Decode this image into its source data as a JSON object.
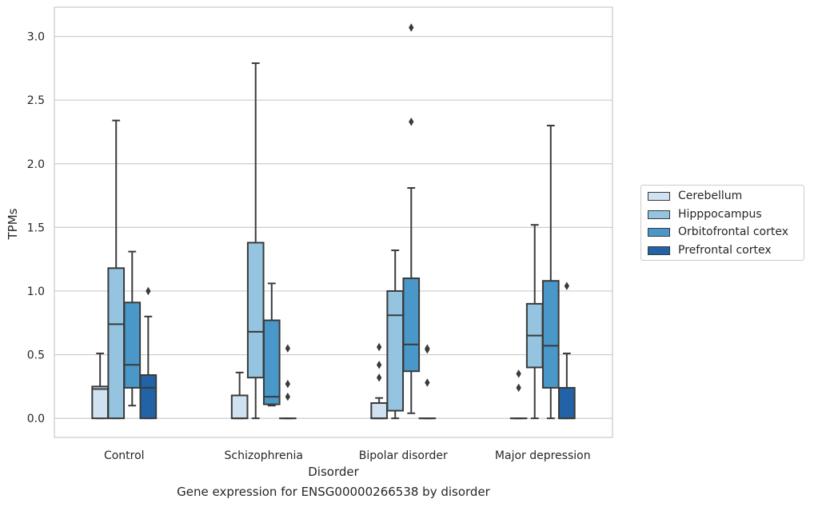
{
  "chart_data": {
    "type": "boxplot",
    "xlabel": "Disorder",
    "ylabel": "TPMs",
    "ylim": [
      -0.15,
      3.23
    ],
    "yticks": [
      "0.0",
      "0.5",
      "1.0",
      "1.5",
      "2.0",
      "2.5",
      "3.0"
    ],
    "grid": "horizontal",
    "legend_placement": "right, outside plot",
    "categories": [
      "Control",
      "Schizophrenia",
      "Bipolar disorder",
      "Major depression"
    ],
    "series": [
      {
        "name": "Cerebellum",
        "color": "#d0e1f2",
        "boxes": [
          {
            "whisker_low": 0.0,
            "q1": 0.0,
            "median": 0.23,
            "q3": 0.25,
            "whisker_high": 0.51,
            "outliers": []
          },
          {
            "whisker_low": 0.0,
            "q1": 0.0,
            "median": 0.0,
            "q3": 0.18,
            "whisker_high": 0.36,
            "outliers": []
          },
          {
            "whisker_low": 0.0,
            "q1": 0.0,
            "median": 0.0,
            "q3": 0.12,
            "whisker_high": 0.16,
            "outliers": [
              0.56,
              0.42,
              0.32
            ]
          },
          {
            "whisker_low": 0.0,
            "q1": 0.0,
            "median": 0.0,
            "q3": 0.0,
            "whisker_high": 0.0,
            "outliers": [
              0.35,
              0.24
            ]
          }
        ]
      },
      {
        "name": "Hipppocampus",
        "color": "#94c4df",
        "boxes": [
          {
            "whisker_low": 0.0,
            "q1": 0.0,
            "median": 0.74,
            "q3": 1.18,
            "whisker_high": 2.34,
            "outliers": []
          },
          {
            "whisker_low": 0.0,
            "q1": 0.32,
            "median": 0.68,
            "q3": 1.38,
            "whisker_high": 2.79,
            "outliers": []
          },
          {
            "whisker_low": 0.0,
            "q1": 0.06,
            "median": 0.81,
            "q3": 1.0,
            "whisker_high": 1.32,
            "outliers": []
          },
          {
            "whisker_low": 0.0,
            "q1": 0.4,
            "median": 0.65,
            "q3": 0.9,
            "whisker_high": 1.52,
            "outliers": []
          }
        ]
      },
      {
        "name": "Orbitofrontal cortex",
        "color": "#4a98c9",
        "boxes": [
          {
            "whisker_low": 0.1,
            "q1": 0.24,
            "median": 0.42,
            "q3": 0.91,
            "whisker_high": 1.31,
            "outliers": []
          },
          {
            "whisker_low": 0.1,
            "q1": 0.11,
            "median": 0.17,
            "q3": 0.77,
            "whisker_high": 1.06,
            "outliers": []
          },
          {
            "whisker_low": 0.04,
            "q1": 0.37,
            "median": 0.58,
            "q3": 1.1,
            "whisker_high": 1.81,
            "outliers": [
              2.33,
              3.07
            ]
          },
          {
            "whisker_low": 0.0,
            "q1": 0.24,
            "median": 0.57,
            "q3": 1.08,
            "whisker_high": 2.3,
            "outliers": []
          }
        ]
      },
      {
        "name": "Prefrontal cortex",
        "color": "#2163a6",
        "boxes": [
          {
            "whisker_low": 0.0,
            "q1": 0.0,
            "median": 0.24,
            "q3": 0.34,
            "whisker_high": 0.8,
            "outliers": [
              1.0
            ]
          },
          {
            "whisker_low": 0.0,
            "q1": 0.0,
            "median": 0.0,
            "q3": 0.0,
            "whisker_high": 0.0,
            "outliers": [
              0.55,
              0.27,
              0.17
            ]
          },
          {
            "whisker_low": 0.0,
            "q1": 0.0,
            "median": 0.0,
            "q3": 0.0,
            "whisker_high": 0.0,
            "outliers": [
              0.55,
              0.54,
              0.28
            ]
          },
          {
            "whisker_low": 0.0,
            "q1": 0.0,
            "median": 0.0,
            "q3": 0.24,
            "whisker_high": 0.51,
            "outliers": [
              1.04
            ]
          }
        ]
      }
    ],
    "caption": "Gene expression for ENSG00000266538 by disorder"
  }
}
